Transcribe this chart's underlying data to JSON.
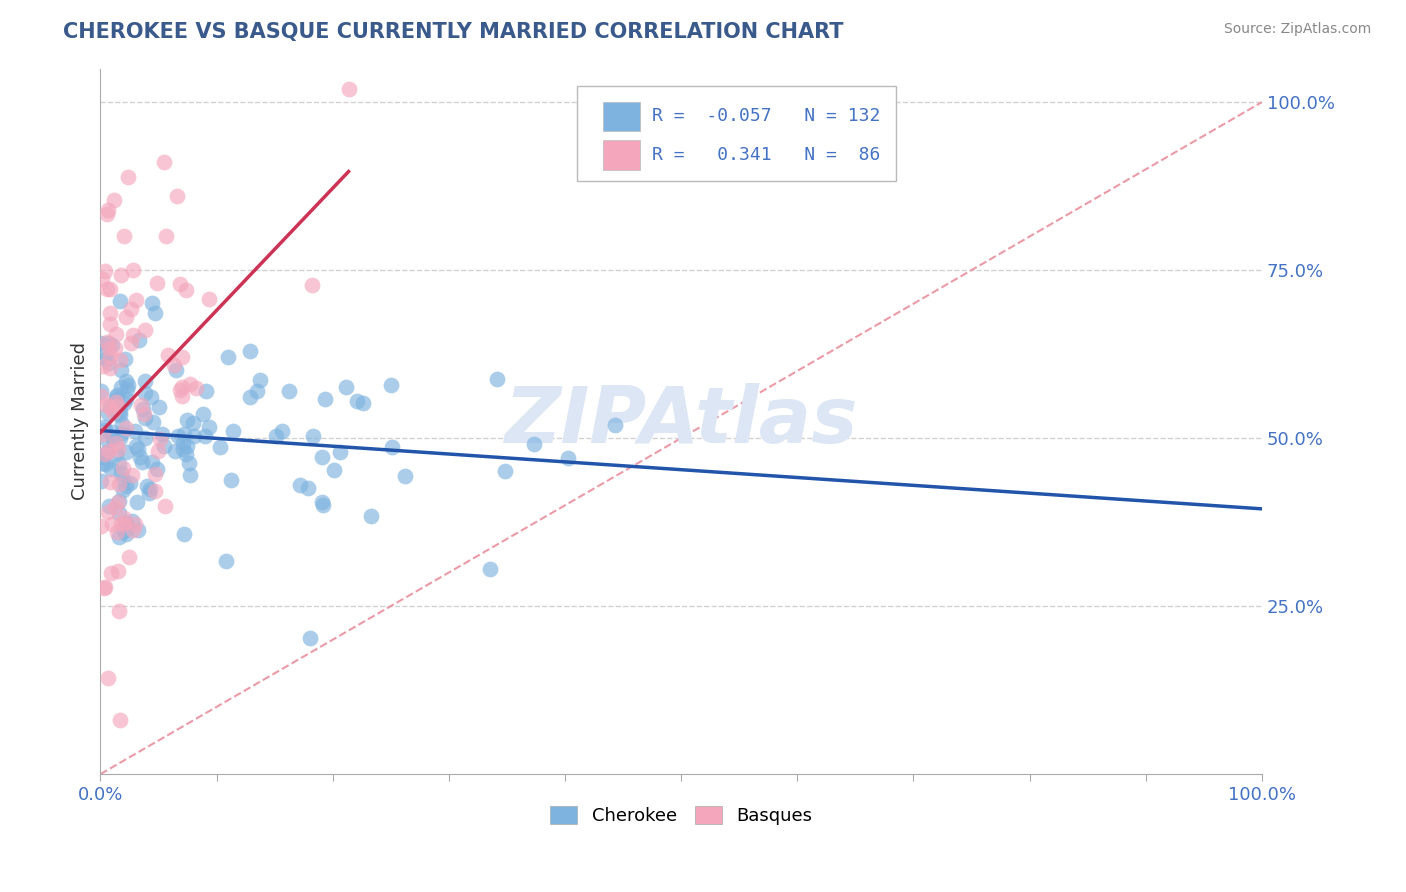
{
  "title": "CHEROKEE VS BASQUE CURRENTLY MARRIED CORRELATION CHART",
  "source_text": "Source: ZipAtlas.com",
  "ylabel": "Currently Married",
  "cherokee_R": -0.057,
  "cherokee_N": 132,
  "basque_R": 0.341,
  "basque_N": 86,
  "cherokee_color": "#7eb3e0",
  "basque_color": "#f4a7bc",
  "cherokee_line_color": "#2255aa",
  "basque_line_color": "#cc3355",
  "ref_line_color": "#e8909e",
  "title_color": "#3a5a8c",
  "source_color": "#888888",
  "background_color": "#ffffff",
  "grid_color": "#cccccc",
  "axis_label_color": "#4472c4",
  "watermark_text": "ZIPAtlas",
  "watermark_color": "#dce6f5",
  "legend_labels": [
    "Cherokee",
    "Basques"
  ],
  "ylim_low": 0.0,
  "ylim_high": 1.05,
  "xlim_low": 0.0,
  "xlim_high": 1.0
}
